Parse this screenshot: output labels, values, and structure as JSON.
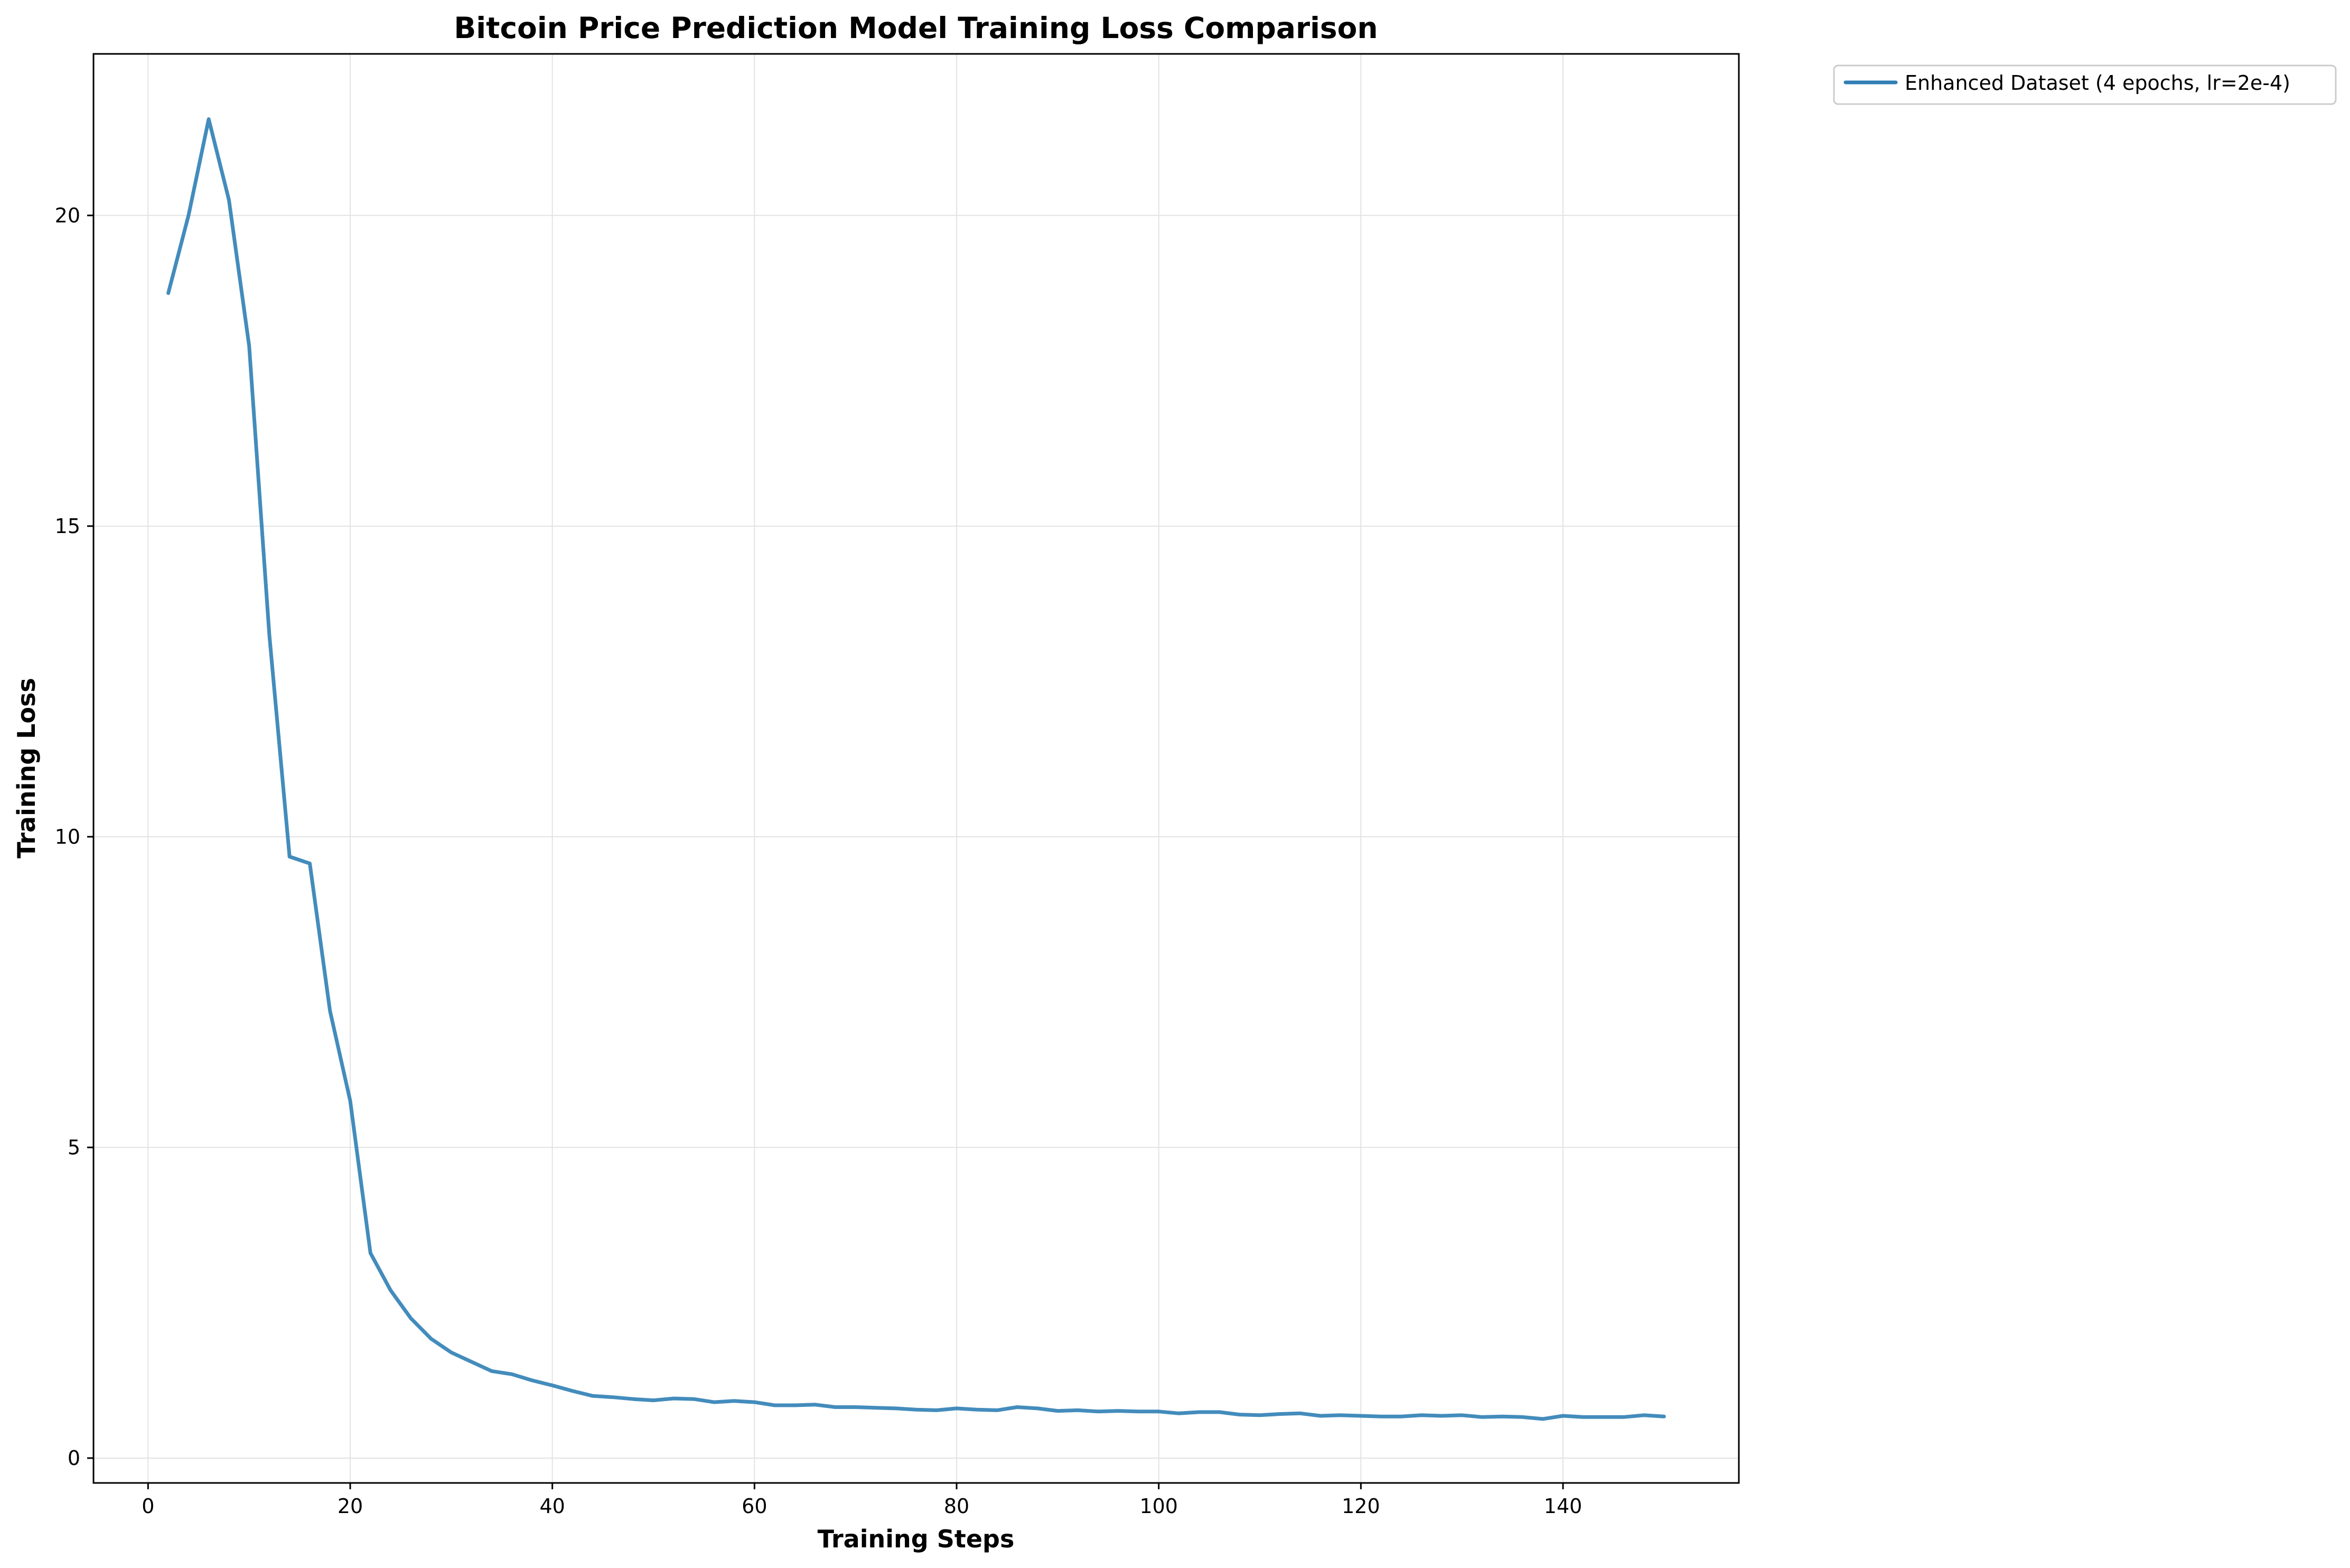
{
  "chart_data": {
    "type": "line",
    "title": "Bitcoin Price Prediction Model Training Loss Comparison",
    "xlabel": "Training Steps",
    "ylabel": "Training Loss",
    "xlim": [
      -5.4,
      157.4
    ],
    "ylim": [
      -0.4,
      22.6
    ],
    "xticks": [
      0,
      20,
      40,
      60,
      80,
      100,
      120,
      140
    ],
    "yticks": [
      0,
      5,
      10,
      15,
      20
    ],
    "grid": true,
    "legend_position": "outside-top-right",
    "series": [
      {
        "name": "Enhanced Dataset (4 epochs, lr=2e-4)",
        "color": "#2f7fb5",
        "x": [
          2,
          4,
          6,
          8,
          10,
          12,
          14,
          16,
          18,
          20,
          22,
          24,
          26,
          28,
          30,
          32,
          34,
          36,
          38,
          40,
          42,
          44,
          46,
          48,
          50,
          52,
          54,
          56,
          58,
          60,
          62,
          64,
          66,
          68,
          70,
          72,
          74,
          76,
          78,
          80,
          82,
          84,
          86,
          88,
          90,
          92,
          94,
          96,
          98,
          100,
          102,
          104,
          106,
          108,
          110,
          112,
          114,
          116,
          118,
          120,
          122,
          124,
          126,
          128,
          130,
          132,
          134,
          136,
          138,
          140,
          142,
          144,
          146,
          148,
          150
        ],
        "y": [
          18.75,
          20.0,
          21.55,
          20.25,
          17.9,
          13.25,
          9.68,
          9.57,
          7.2,
          5.75,
          3.3,
          2.7,
          2.25,
          1.92,
          1.7,
          1.55,
          1.4,
          1.35,
          1.25,
          1.17,
          1.08,
          1.0,
          0.98,
          0.95,
          0.93,
          0.96,
          0.95,
          0.9,
          0.92,
          0.9,
          0.85,
          0.85,
          0.86,
          0.82,
          0.82,
          0.81,
          0.8,
          0.78,
          0.77,
          0.8,
          0.78,
          0.77,
          0.82,
          0.8,
          0.76,
          0.77,
          0.75,
          0.76,
          0.75,
          0.75,
          0.72,
          0.74,
          0.74,
          0.7,
          0.69,
          0.71,
          0.72,
          0.68,
          0.69,
          0.68,
          0.67,
          0.67,
          0.69,
          0.68,
          0.69,
          0.66,
          0.67,
          0.66,
          0.63,
          0.68,
          0.66,
          0.66,
          0.66,
          0.69,
          0.67
        ]
      }
    ]
  }
}
